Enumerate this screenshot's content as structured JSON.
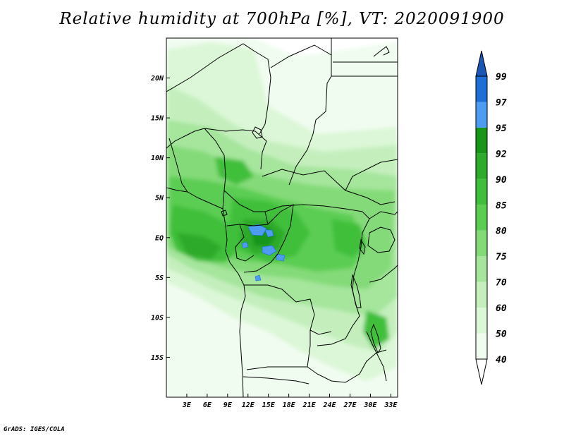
{
  "title": "Relative humidity at 700hPa [%], VT: 2020091900",
  "credit": "GrADS: IGES/COLA",
  "map": {
    "lon_range": [
      0,
      34
    ],
    "lat_range": [
      -20,
      25
    ],
    "lat_ticks": [
      {
        "value": 20,
        "label": "20N"
      },
      {
        "value": 15,
        "label": "15N"
      },
      {
        "value": 10,
        "label": "10N"
      },
      {
        "value": 5,
        "label": "5N"
      },
      {
        "value": 0,
        "label": "EQ"
      },
      {
        "value": -5,
        "label": "5S"
      },
      {
        "value": -10,
        "label": "10S"
      },
      {
        "value": -15,
        "label": "15S"
      }
    ],
    "lon_ticks": [
      {
        "value": 3,
        "label": "3E"
      },
      {
        "value": 6,
        "label": "6E"
      },
      {
        "value": 9,
        "label": "9E"
      },
      {
        "value": 12,
        "label": "12E"
      },
      {
        "value": 15,
        "label": "15E"
      },
      {
        "value": 18,
        "label": "18E"
      },
      {
        "value": 21,
        "label": "21E"
      },
      {
        "value": 24,
        "label": "24E"
      },
      {
        "value": 27,
        "label": "27E"
      },
      {
        "value": 30,
        "label": "30E"
      },
      {
        "value": 33,
        "label": "33E"
      }
    ]
  },
  "colorbar": {
    "levels": [
      {
        "label": "40",
        "color": "#f0fcf0"
      },
      {
        "label": "50",
        "color": "#dcf7d7"
      },
      {
        "label": "60",
        "color": "#c4efbd"
      },
      {
        "label": "70",
        "color": "#a5e59c"
      },
      {
        "label": "75",
        "color": "#84da78"
      },
      {
        "label": "80",
        "color": "#5ccd53"
      },
      {
        "label": "85",
        "color": "#3fbf3b"
      },
      {
        "label": "90",
        "color": "#2eaa2c"
      },
      {
        "label": "92",
        "color": "#17961a"
      },
      {
        "label": "95",
        "color": "#4d9cf1"
      },
      {
        "label": "97",
        "color": "#1f6ed8"
      },
      {
        "label": "99",
        "color": "#1353b5"
      }
    ],
    "below_color": "#ffffff",
    "above_color": "#1a55b8"
  }
}
